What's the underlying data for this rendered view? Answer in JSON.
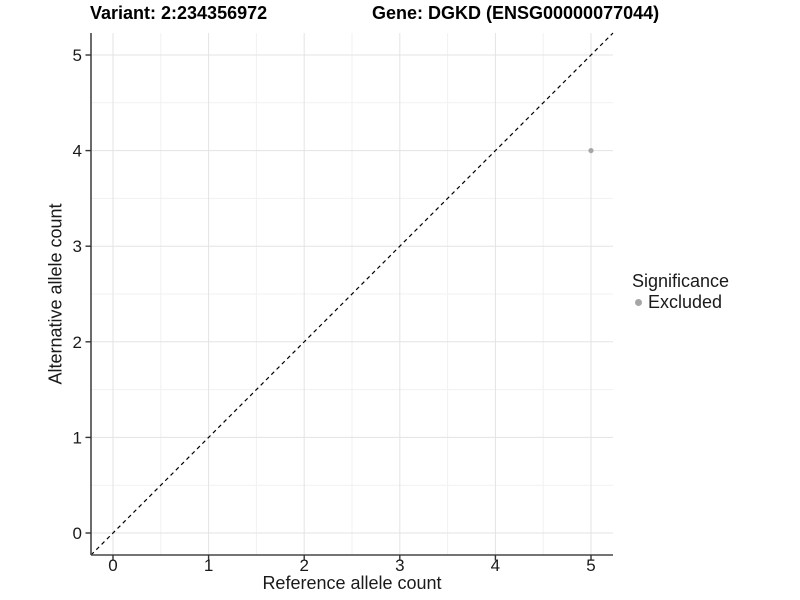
{
  "titles": {
    "variant": "Variant: 2:234356972",
    "gene": "Gene: DGKD (ENSG00000077044)"
  },
  "chart_data": {
    "type": "scatter",
    "title_left": "Variant: 2:234356972",
    "title_right": "Gene: DGKD (ENSG00000077044)",
    "xlabel": "Reference allele count",
    "ylabel": "Alternative allele count",
    "xlim": [
      -0.23,
      5.23
    ],
    "ylim": [
      -0.23,
      5.23
    ],
    "x_ticks": [
      0,
      1,
      2,
      3,
      4,
      5
    ],
    "y_ticks": [
      0,
      1,
      2,
      3,
      4,
      5
    ],
    "x_minor_ticks": [
      0.5,
      1.5,
      2.5,
      3.5,
      4.5
    ],
    "y_minor_ticks": [
      0.5,
      1.5,
      2.5,
      3.5,
      4.5
    ],
    "grid": "major+minor",
    "points": [
      {
        "x": 5,
        "y": 4,
        "series": "Excluded"
      }
    ],
    "reference_line": {
      "type": "identity",
      "from": -0.23,
      "to": 5.23,
      "style": "dashed",
      "color": "#000000"
    },
    "legend": {
      "title": "Significance",
      "position": "right",
      "items": [
        {
          "label": "Excluded",
          "color": "#a6a6a6",
          "marker": "circle"
        }
      ]
    },
    "style": {
      "background": "#ffffff",
      "grid_major_color": "#e3e3e3",
      "grid_minor_color": "#f1f1f1",
      "axis_line_color": "#464646",
      "tick_color": "#333333",
      "text_color": "#1a1a1a",
      "point_color": "#a6a6a6"
    }
  }
}
